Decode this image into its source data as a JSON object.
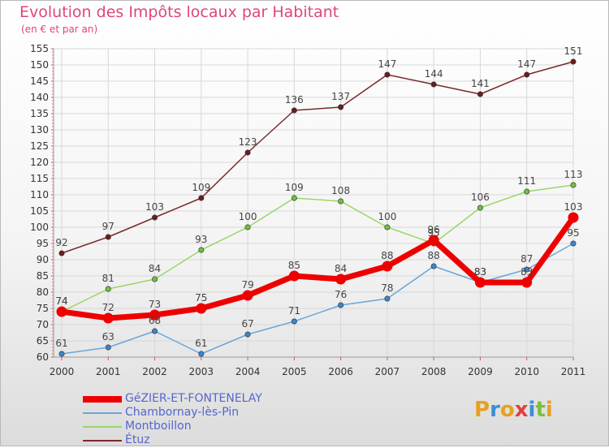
{
  "header": {
    "title": "Evolution des Impôts locaux par Habitant",
    "subtitle": "(en € et par an)"
  },
  "colors": {
    "title": "#e0457b",
    "grid": "#d8d8d8",
    "axis_tick": "#e0457b"
  },
  "logo": {
    "letters": [
      "P",
      "r",
      "o",
      "x",
      "i",
      "t",
      "i"
    ],
    "colors": [
      "#e8a020",
      "#3a8fd8",
      "#e8a020",
      "#e04040",
      "#3a8fd8",
      "#7bbf3a",
      "#e8a020"
    ]
  },
  "chart_data": {
    "type": "line",
    "title": "Evolution des Impôts locaux par Habitant",
    "subtitle": "(en € et par an)",
    "xlabel": "",
    "ylabel": "",
    "ylim": [
      60,
      155
    ],
    "ytick_step": 5,
    "grid": true,
    "legend_position": "bottom-left",
    "x": [
      "2000",
      "2001",
      "2002",
      "2003",
      "2004",
      "2005",
      "2006",
      "2007",
      "2008",
      "2009",
      "2010",
      "2011"
    ],
    "series": [
      {
        "name": "Étuz",
        "color": "#7a2a2a",
        "marker": "#6b1d1d",
        "thick": false,
        "values": [
          92,
          97,
          103,
          109,
          123,
          136,
          137,
          147,
          144,
          141,
          147,
          151
        ],
        "labels": [
          "92",
          "97",
          "103",
          "109",
          "123",
          "136",
          "137",
          "147",
          "144",
          "141",
          "147",
          "151"
        ]
      },
      {
        "name": "Montboillon",
        "color": "#9ad66a",
        "marker": "#6cc23a",
        "thick": false,
        "values": [
          74,
          81,
          84,
          93,
          100,
          109,
          108,
          100,
          95,
          106,
          111,
          113
        ],
        "labels": [
          "74",
          "81",
          "84",
          "93",
          "100",
          "109",
          "108",
          "100",
          "95",
          "106",
          "111",
          "113"
        ]
      },
      {
        "name": "Chambornay-lès-Pin",
        "color": "#6aa6d8",
        "marker": "#3b86c8",
        "thick": false,
        "values": [
          61,
          63,
          68,
          61,
          67,
          71,
          76,
          78,
          88,
          83,
          87,
          95
        ],
        "labels": [
          "61",
          "63",
          "68",
          "61",
          "67",
          "71",
          "76",
          "78",
          "88",
          "83",
          "87",
          "95"
        ]
      },
      {
        "name": "GéZIER-ET-FONTENELAY",
        "color": "#ee0000",
        "marker": "#ee0000",
        "thick": true,
        "values": [
          74,
          72,
          73,
          75,
          79,
          85,
          84,
          88,
          96,
          83,
          83,
          103
        ],
        "labels": [
          "74",
          "72",
          "73",
          "75",
          "79",
          "85",
          "84",
          "88",
          "96",
          "83",
          "83",
          "103"
        ]
      }
    ],
    "legend_order": [
      "GéZIER-ET-FONTENELAY",
      "Chambornay-lès-Pin",
      "Montboillon",
      "Étuz"
    ]
  }
}
